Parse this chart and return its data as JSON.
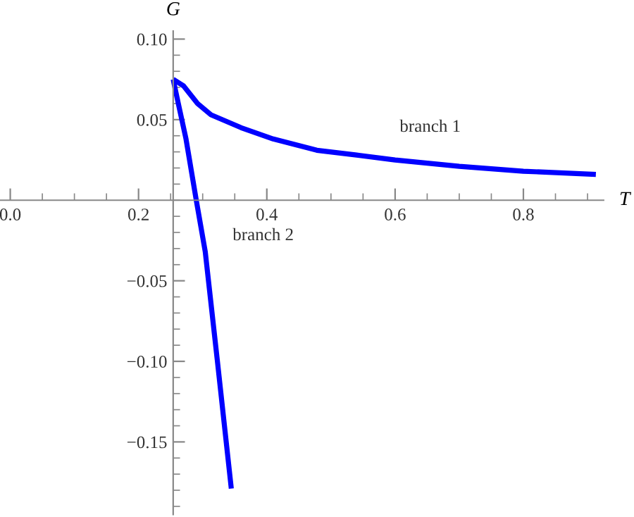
{
  "chart_data": {
    "type": "line",
    "xlabel": "T",
    "ylabel": "G",
    "xlim": [
      -0.016,
      0.925
    ],
    "ylim": [
      -0.195,
      0.105
    ],
    "xticks": [
      {
        "value": 0,
        "label": "0.0"
      },
      0.2,
      0.4,
      0.6,
      0.8
    ],
    "yticks": [
      {
        "value": -0.15,
        "label": "−0.15"
      },
      {
        "value": -0.1,
        "label": "−0.10"
      },
      {
        "value": -0.05,
        "label": "−0.05"
      },
      0.05,
      {
        "value": 0.1,
        "label": "0.10"
      }
    ],
    "series": [
      {
        "color": "#0000ff",
        "x": [
          0.254,
          0.27,
          0.292,
          0.313,
          0.36,
          0.41,
          0.478,
          0.54,
          0.6,
          0.7,
          0.8,
          0.913
        ],
        "values": [
          0.075,
          0.071,
          0.06,
          0.053,
          0.045,
          0.038,
          0.031,
          0.028,
          0.025,
          0.021,
          0.018,
          0.016
        ]
      },
      {
        "color": "#0000ff",
        "x": [
          0.254,
          0.262,
          0.274,
          0.29,
          0.304,
          0.3227,
          0.3446
        ],
        "values": [
          0.075,
          0.06,
          0.038,
          0.0,
          -0.032,
          -0.099,
          -0.179
        ]
      }
    ],
    "annotations": [
      "branch 1",
      "branch 2"
    ],
    "line_style": "solid",
    "grid": false
  }
}
